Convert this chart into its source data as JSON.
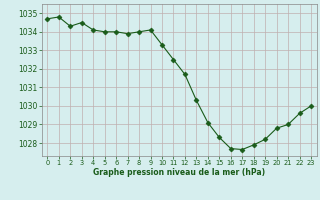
{
  "hours": [
    0,
    1,
    2,
    3,
    4,
    5,
    6,
    7,
    8,
    9,
    10,
    11,
    12,
    13,
    14,
    15,
    16,
    17,
    18,
    19,
    20,
    21,
    22,
    23
  ],
  "pressure": [
    1034.7,
    1034.8,
    1034.3,
    1034.5,
    1034.1,
    1034.0,
    1034.0,
    1033.9,
    1034.0,
    1034.1,
    1033.3,
    1032.5,
    1031.7,
    1030.3,
    1029.1,
    1028.3,
    1027.7,
    1027.65,
    1027.9,
    1028.2,
    1028.8,
    1029.0,
    1029.6,
    1030.0
  ],
  "line_color": "#1a5c1a",
  "marker": "D",
  "marker_size": 2.5,
  "bg_color": "#d6eeee",
  "grid_color": "#c0b0b0",
  "xlabel": "Graphe pression niveau de la mer (hPa)",
  "xlabel_color": "#1a5c1a",
  "tick_color": "#1a5c1a",
  "ylim_min": 1027.3,
  "ylim_max": 1035.5,
  "yticks": [
    1028,
    1029,
    1030,
    1031,
    1032,
    1033,
    1034,
    1035
  ],
  "xtick_labels": [
    "0",
    "1",
    "2",
    "3",
    "4",
    "5",
    "6",
    "7",
    "8",
    "9",
    "10",
    "11",
    "12",
    "13",
    "14",
    "15",
    "16",
    "17",
    "18",
    "19",
    "20",
    "21",
    "22",
    "23"
  ]
}
